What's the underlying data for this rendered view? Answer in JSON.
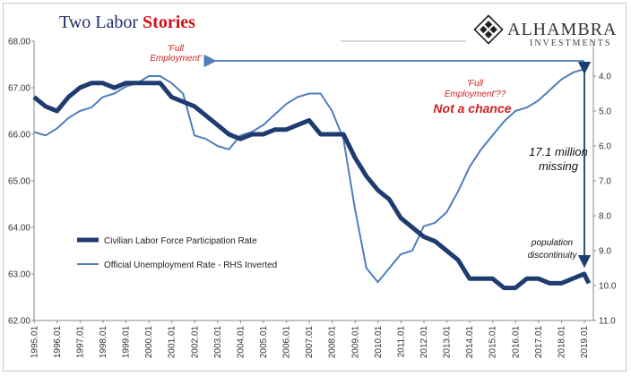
{
  "header": {
    "title_prefix": "Two Labor ",
    "title_emphasis": "Stories",
    "logo_name": "ALHAMBRA",
    "logo_sub": "INVESTMENTS"
  },
  "chart_data": {
    "type": "line",
    "title": "Two Labor Stories",
    "left_axis": {
      "ylim": [
        62.0,
        68.0
      ],
      "ticks": [
        "62.00",
        "63.00",
        "64.00",
        "65.00",
        "66.00",
        "67.00",
        "68.00"
      ]
    },
    "right_axis": {
      "ylim": [
        11.0,
        3.0
      ],
      "inverted": true,
      "ticks": [
        "4.0",
        "5.0",
        "6.0",
        "7.0",
        "8.0",
        "9.0",
        "10.0",
        "11.0"
      ]
    },
    "x_ticks": [
      "1995.01",
      "1996.01",
      "1997.01",
      "1998.01",
      "1999.01",
      "2000.01",
      "2001.01",
      "2002.01",
      "2003.01",
      "2004.01",
      "2005.01",
      "2006.01",
      "2007.01",
      "2008.01",
      "2009.01",
      "2010.01",
      "2011.01",
      "2012.01",
      "2013.01",
      "2014.01",
      "2015.01",
      "2016.01",
      "2017.01",
      "2018.01",
      "2019.01"
    ],
    "x": [
      1995.0,
      1995.5,
      1996.0,
      1996.5,
      1997.0,
      1997.5,
      1998.0,
      1998.5,
      1999.0,
      1999.5,
      2000.0,
      2000.5,
      2001.0,
      2001.5,
      2002.0,
      2002.5,
      2003.0,
      2003.5,
      2004.0,
      2004.5,
      2005.0,
      2005.5,
      2006.0,
      2006.5,
      2007.0,
      2007.5,
      2008.0,
      2008.5,
      2009.0,
      2009.5,
      2010.0,
      2010.5,
      2011.0,
      2011.5,
      2012.0,
      2012.5,
      2013.0,
      2013.5,
      2014.0,
      2014.5,
      2015.0,
      2015.5,
      2016.0,
      2016.5,
      2017.0,
      2017.5,
      2018.0,
      2018.5,
      2019.0,
      2019.2
    ],
    "series": [
      {
        "name": "Civilian Labor Force Participation Rate",
        "axis": "left",
        "values": [
          66.8,
          66.6,
          66.5,
          66.8,
          67.0,
          67.1,
          67.1,
          67.0,
          67.1,
          67.1,
          67.1,
          67.1,
          66.8,
          66.7,
          66.6,
          66.4,
          66.2,
          66.0,
          65.9,
          66.0,
          66.0,
          66.1,
          66.1,
          66.2,
          66.3,
          66.0,
          66.0,
          66.0,
          65.5,
          65.1,
          64.8,
          64.6,
          64.2,
          64.0,
          63.8,
          63.7,
          63.5,
          63.3,
          62.9,
          62.9,
          62.9,
          62.7,
          62.7,
          62.9,
          62.9,
          62.8,
          62.8,
          62.9,
          63.0,
          62.8
        ]
      },
      {
        "name": "Official Unemployment Rate - RHS Inverted",
        "axis": "right",
        "values": [
          5.6,
          5.7,
          5.5,
          5.2,
          5.0,
          4.9,
          4.6,
          4.5,
          4.3,
          4.2,
          4.0,
          4.0,
          4.2,
          4.5,
          5.7,
          5.8,
          6.0,
          6.1,
          5.7,
          5.6,
          5.4,
          5.1,
          4.8,
          4.6,
          4.5,
          4.5,
          5.0,
          5.8,
          7.8,
          9.5,
          9.9,
          9.5,
          9.1,
          9.0,
          8.3,
          8.2,
          7.9,
          7.3,
          6.6,
          6.1,
          5.7,
          5.3,
          5.0,
          4.9,
          4.7,
          4.4,
          4.1,
          3.9,
          3.8,
          3.6
        ]
      }
    ],
    "annotations": {
      "full_employment": "'Full Employment'",
      "full_employment_q": "'Full Employment'??",
      "not_a_chance": "Not a chance",
      "missing_amount": "17.1 million",
      "missing_word": "missing",
      "pop_disc_1": "population",
      "pop_disc_2": "discontinuity"
    },
    "colors": {
      "lfpr": "#1f3c70",
      "unemployment": "#4f7ebd",
      "annotation": "#cc2020"
    }
  }
}
